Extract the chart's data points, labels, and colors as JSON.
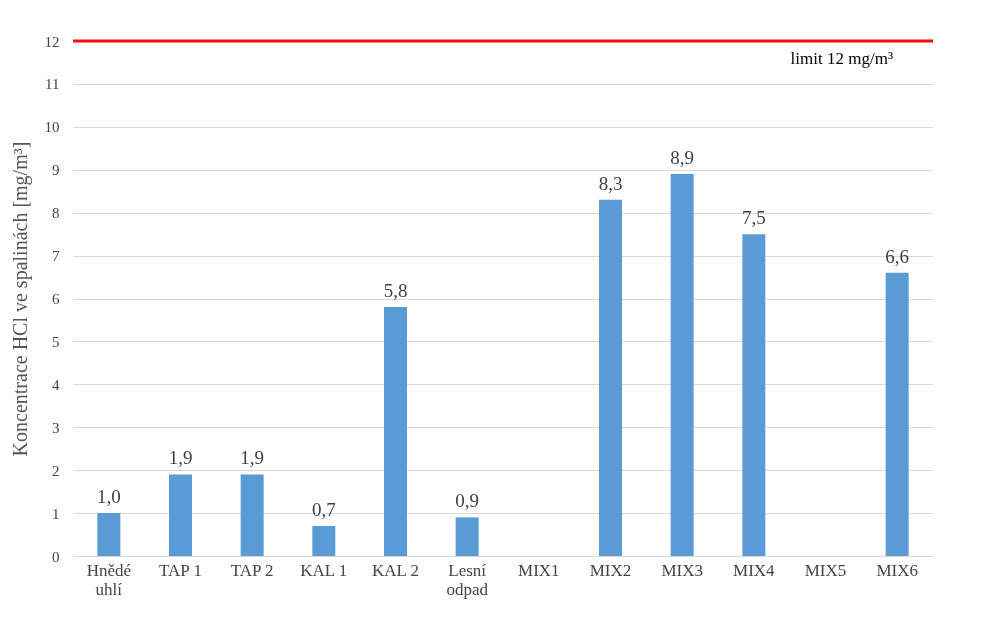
{
  "chart_data": {
    "type": "bar",
    "ylabel": "Koncentrace HCl ve spalinách [mg/m³]",
    "categories": [
      "Hnědé uhlí",
      "TAP 1",
      "TAP 2",
      "KAL 1",
      "KAL 2",
      "Lesní odpad",
      "MIX1",
      "MIX2",
      "MIX3",
      "MIX4",
      "MIX5",
      "MIX6"
    ],
    "values": [
      1.0,
      1.9,
      1.9,
      0.7,
      5.8,
      0.9,
      null,
      8.3,
      8.9,
      7.5,
      null,
      6.6
    ],
    "value_labels": [
      "1,0",
      "1,9",
      "1,9",
      "0,7",
      "5,8",
      "0,9",
      null,
      "8,3",
      "8,9",
      "7,5",
      null,
      "6,6"
    ],
    "color": "#5b9bd5",
    "ylim": [
      0,
      12
    ],
    "yticks": [
      0,
      1,
      2,
      3,
      4,
      5,
      6,
      7,
      8,
      9,
      10,
      11,
      12
    ],
    "grid": "y",
    "ref_lines": [
      {
        "axis": "y",
        "value": 12,
        "label": "limit 12 mg/m³",
        "color": "#ee1111"
      }
    ]
  }
}
